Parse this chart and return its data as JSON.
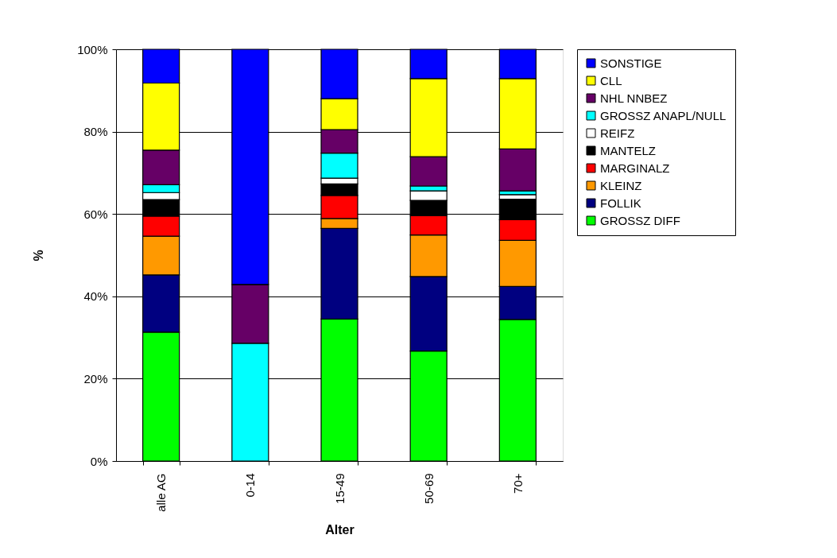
{
  "chart_data": {
    "type": "bar",
    "stacked": true,
    "xlabel": "Alter",
    "ylabel": "%",
    "categories": [
      "alle AG",
      "0-14",
      "15-49",
      "50-69",
      "70+"
    ],
    "series": [
      {
        "name": "GROSSZ DIFF",
        "color": "#00ff00",
        "values": [
          31.3,
          0,
          34.5,
          26.7,
          34.4
        ]
      },
      {
        "name": "FOLLIK",
        "color": "#000080",
        "values": [
          13.9,
          0,
          22.0,
          18.1,
          8.0
        ]
      },
      {
        "name": "KLEINZ",
        "color": "#ff9900",
        "values": [
          9.4,
          0,
          2.4,
          10.1,
          11.2
        ]
      },
      {
        "name": "MARGINALZ",
        "color": "#ff0000",
        "values": [
          4.9,
          0,
          5.6,
          4.7,
          5.0
        ]
      },
      {
        "name": "MANTELZ",
        "color": "#000000",
        "values": [
          4.0,
          0,
          2.8,
          3.7,
          5.0
        ]
      },
      {
        "name": "REIFZ",
        "color": "#ffffff",
        "values": [
          1.7,
          0,
          1.4,
          2.3,
          1.1
        ]
      },
      {
        "name": "GROSSZ ANAPL/NULL",
        "color": "#00ffff",
        "values": [
          1.9,
          28.6,
          6.1,
          1.2,
          0.9
        ]
      },
      {
        "name": "NHL NNBEZ",
        "color": "#660066",
        "values": [
          8.4,
          14.3,
          5.7,
          7.1,
          10.2
        ]
      },
      {
        "name": "CLL",
        "color": "#ffff00",
        "values": [
          16.3,
          0,
          7.5,
          19.0,
          17.1
        ]
      },
      {
        "name": "SONSTIGE",
        "color": "#0000ff",
        "values": [
          8.2,
          57.1,
          12.0,
          7.1,
          7.1
        ]
      }
    ],
    "ylim": [
      0,
      100
    ],
    "yticks": [
      {
        "value": 0,
        "label": "0%"
      },
      {
        "value": 20,
        "label": "20%"
      },
      {
        "value": 40,
        "label": "40%"
      },
      {
        "value": 60,
        "label": "60%"
      },
      {
        "value": 80,
        "label": "80%"
      },
      {
        "value": 100,
        "label": "100%"
      }
    ],
    "grid": "y",
    "legend": "right"
  }
}
